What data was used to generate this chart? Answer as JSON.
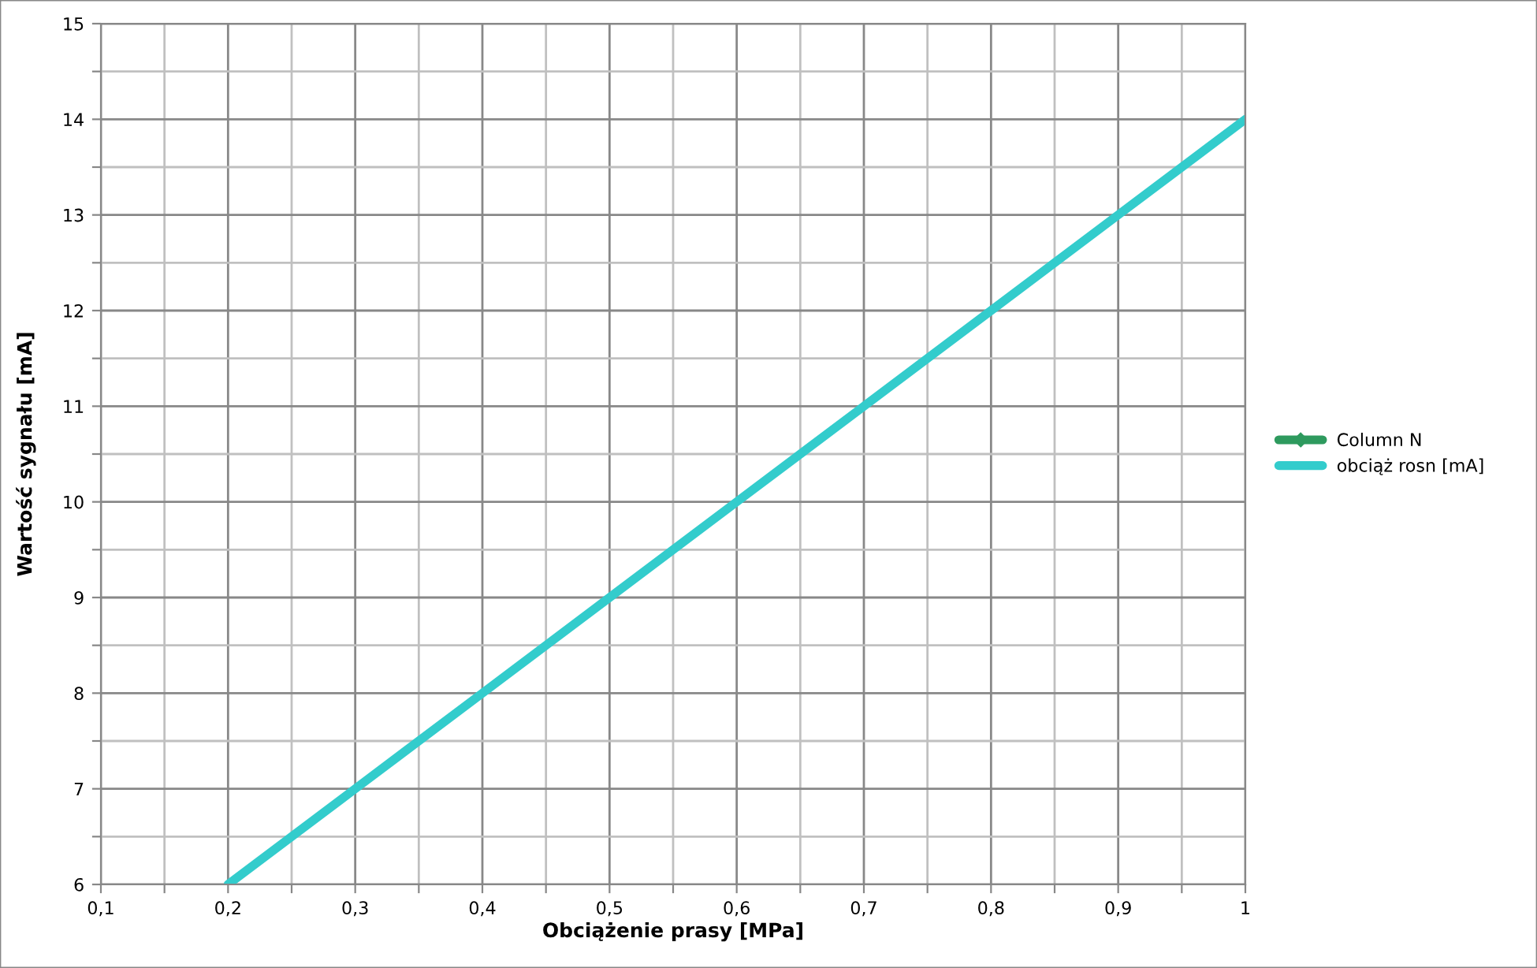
{
  "chart_data": {
    "type": "line",
    "xlabel": "Obciążenie prasy [MPa]",
    "ylabel": "Wartość sygnału [mA]",
    "x": [
      0.2,
      0.3,
      0.4,
      0.5,
      0.6,
      0.7,
      0.8,
      0.9,
      1.0
    ],
    "series": [
      {
        "name": "Column N",
        "color": "#2e9a5e",
        "marker": "diamond",
        "values": [
          null,
          null,
          null,
          null,
          null,
          null,
          null,
          null,
          null
        ]
      },
      {
        "name": "obciąż rosn [mA]",
        "color": "#33cccc",
        "values": [
          6,
          7,
          8,
          9,
          10,
          11,
          12,
          13,
          14
        ]
      }
    ],
    "xlim": [
      0.1,
      1
    ],
    "ylim": [
      6,
      15
    ],
    "xticks": [
      {
        "value": 0.1,
        "label": "0,1"
      },
      {
        "value": 0.15,
        "label": null
      },
      {
        "value": 0.2,
        "label": "0,2"
      },
      {
        "value": 0.25,
        "label": null
      },
      {
        "value": 0.3,
        "label": "0,3"
      },
      {
        "value": 0.35,
        "label": null
      },
      {
        "value": 0.4,
        "label": "0,4"
      },
      {
        "value": 0.45,
        "label": null
      },
      {
        "value": 0.5,
        "label": "0,5"
      },
      {
        "value": 0.55,
        "label": null
      },
      {
        "value": 0.6,
        "label": "0,6"
      },
      {
        "value": 0.65,
        "label": null
      },
      {
        "value": 0.7,
        "label": "0,7"
      },
      {
        "value": 0.75,
        "label": null
      },
      {
        "value": 0.8,
        "label": "0,8"
      },
      {
        "value": 0.85,
        "label": null
      },
      {
        "value": 0.9,
        "label": "0,9"
      },
      {
        "value": 0.95,
        "label": null
      },
      {
        "value": 1,
        "label": "1"
      }
    ],
    "yticks": [
      6,
      {
        "value": 6.5,
        "label": null
      },
      7,
      {
        "value": 7.5,
        "label": null
      },
      8,
      {
        "value": 8.5,
        "label": null
      },
      9,
      {
        "value": 9.5,
        "label": null
      },
      10,
      {
        "value": 10.5,
        "label": null
      },
      11,
      {
        "value": 11.5,
        "label": null
      },
      12,
      {
        "value": 12.5,
        "label": null
      },
      13,
      {
        "value": 13.5,
        "label": null
      },
      14,
      {
        "value": 14.5,
        "label": null
      },
      15
    ],
    "grid": true,
    "legend": "right"
  }
}
